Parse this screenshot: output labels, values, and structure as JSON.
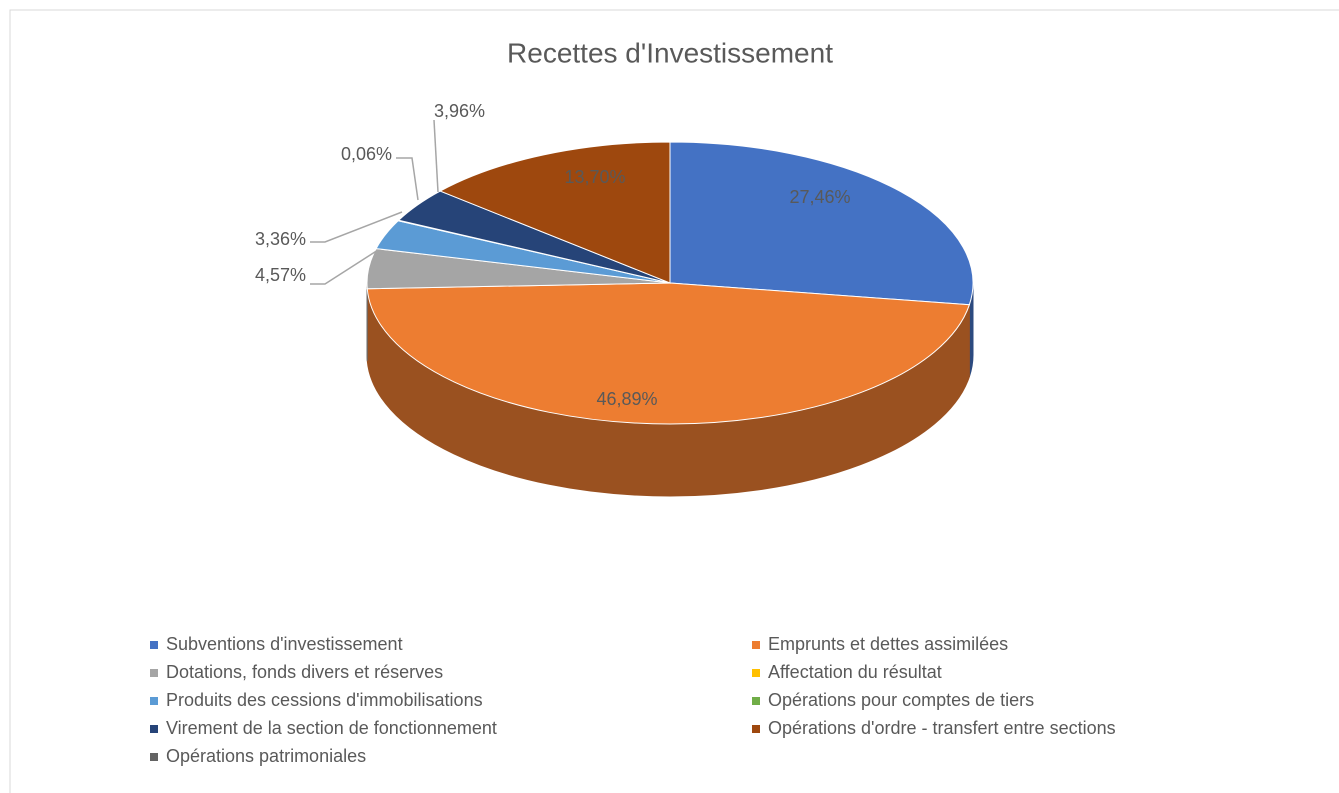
{
  "chart_data": {
    "type": "pie",
    "title": "Recettes d'Investissement",
    "categories": [
      "Subventions d'investissement",
      "Emprunts et dettes assimilées",
      "Dotations, fonds divers et réserves",
      "Affectation du résultat",
      "Produits des cessions d'immobilisations",
      "Opérations pour comptes de tiers",
      "Virement de la section de fonctionnement",
      "Opérations d'ordre - transfert entre sections",
      "Opérations patrimoniales"
    ],
    "values": [
      27.46,
      46.89,
      4.57,
      0,
      3.36,
      0.06,
      3.96,
      13.7,
      0
    ],
    "value_labels": [
      "27,46%",
      "46,89%",
      "4,57%",
      null,
      "3,36%",
      "0,06%",
      "3,96%",
      "13,70%",
      null
    ],
    "colors": [
      "#4472c4",
      "#ed7d31",
      "#a5a5a5",
      "#ffc000",
      "#5b9bd5",
      "#70ad47",
      "#264478",
      "#9e480e",
      "#636363"
    ],
    "legend": "bottom"
  }
}
